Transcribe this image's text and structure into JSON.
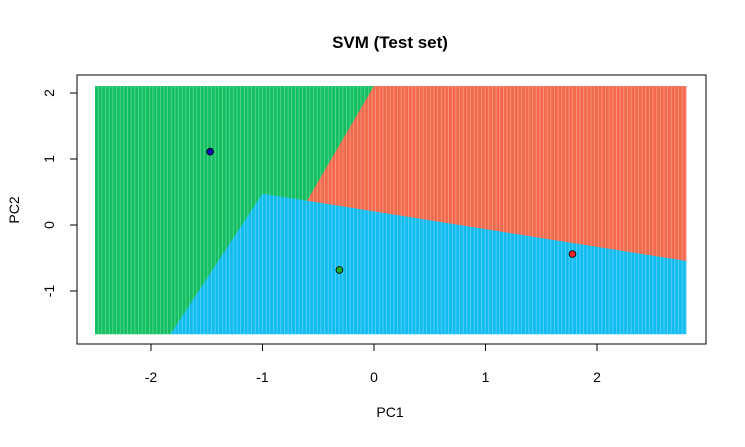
{
  "chart_data": {
    "type": "scatter",
    "title": "SVM (Test set)",
    "xlabel": "PC1",
    "ylabel": "PC2",
    "xlim": [
      -2.5,
      2.8
    ],
    "ylim": [
      -1.7,
      2.15
    ],
    "grid_x_range": [
      -2.5,
      2.8
    ],
    "grid_y_range": [
      -1.65,
      2.1
    ],
    "x_ticks": [
      -2,
      -1,
      0,
      1,
      2
    ],
    "y_ticks": [
      -1,
      0,
      1,
      2
    ],
    "x_tick_labels": [
      "-2",
      "-1",
      "0",
      "1",
      "2"
    ],
    "y_tick_labels": [
      "-1",
      "0",
      "1",
      "2"
    ],
    "regions": [
      {
        "name": "class-1",
        "color": "#f4694b",
        "label": "1"
      },
      {
        "name": "class-2",
        "color": "#12c061",
        "label": "2"
      },
      {
        "name": "class-3",
        "color": "#10bcf0",
        "label": "3"
      }
    ],
    "boundary_pivot": [
      -0.6,
      0.4
    ],
    "boundary_edges": [
      {
        "from": [
          -0.6,
          0.4
        ],
        "to": [
          0.0,
          2.1
        ],
        "between": [
          "class-2",
          "class-1"
        ]
      },
      {
        "from": [
          -1.0,
          0.47
        ],
        "to": [
          2.8,
          -0.55
        ],
        "between": [
          "class-3",
          "class-1"
        ]
      },
      {
        "from": [
          -1.0,
          0.47
        ],
        "to": [
          -1.82,
          -1.65
        ],
        "between": [
          "class-2",
          "class-3"
        ]
      }
    ],
    "points": [
      {
        "x": -1.47,
        "y": 1.11,
        "color": "#1010b0"
      },
      {
        "x": -0.31,
        "y": -0.68,
        "color": "#22aa22"
      },
      {
        "x": 1.78,
        "y": -0.44,
        "color": "#ee2020"
      }
    ]
  }
}
